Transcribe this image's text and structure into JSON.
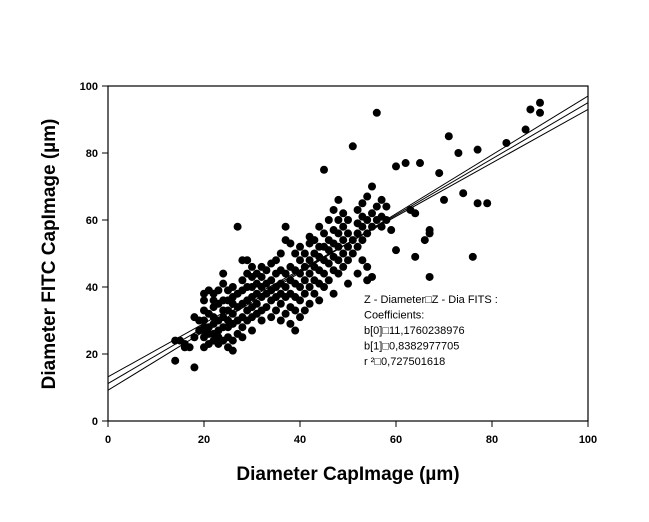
{
  "chart_data": {
    "type": "scatter",
    "xlabel": "Diameter CapImage (µm)",
    "ylabel": "Diameter FITC CapImage (µm)",
    "xlim": [
      0,
      100
    ],
    "ylim": [
      0,
      100
    ],
    "x_ticks": [
      0,
      20,
      40,
      60,
      80,
      100
    ],
    "y_ticks": [
      0,
      20,
      40,
      60,
      80,
      100
    ],
    "grid": false,
    "regression": {
      "intercept": 11.1760238976,
      "slope": 0.8382977705
    },
    "confidence_band_offsets": [
      -2,
      2
    ],
    "annotation": [
      "Z - Diameter□Z - Dia FITS :",
      "Coefficients:",
      "b[0]□11,1760238976",
      "b[1]□0,8382977705",
      "r ²□0,727501618"
    ],
    "points": [
      [
        14,
        18
      ],
      [
        14,
        24
      ],
      [
        15,
        24
      ],
      [
        16,
        22
      ],
      [
        16,
        23
      ],
      [
        17,
        22
      ],
      [
        18,
        16
      ],
      [
        18,
        25
      ],
      [
        19,
        27
      ],
      [
        19,
        30
      ],
      [
        18,
        31
      ],
      [
        20,
        22
      ],
      [
        20,
        25
      ],
      [
        20,
        27
      ],
      [
        20,
        28
      ],
      [
        20,
        30
      ],
      [
        20,
        33
      ],
      [
        20,
        36
      ],
      [
        20,
        38
      ],
      [
        21,
        23
      ],
      [
        21,
        26
      ],
      [
        21,
        28
      ],
      [
        21,
        32
      ],
      [
        21,
        39
      ],
      [
        22,
        24
      ],
      [
        22,
        26
      ],
      [
        22,
        29
      ],
      [
        22,
        31
      ],
      [
        22,
        34
      ],
      [
        22,
        36
      ],
      [
        22,
        38
      ],
      [
        23,
        23
      ],
      [
        23,
        25
      ],
      [
        23,
        27
      ],
      [
        23,
        30
      ],
      [
        23,
        35
      ],
      [
        23,
        39
      ],
      [
        24,
        24
      ],
      [
        24,
        28
      ],
      [
        24,
        31
      ],
      [
        24,
        33
      ],
      [
        24,
        36
      ],
      [
        24,
        41
      ],
      [
        24,
        44
      ],
      [
        25,
        22
      ],
      [
        25,
        25
      ],
      [
        25,
        28
      ],
      [
        25,
        30
      ],
      [
        25,
        33
      ],
      [
        25,
        36
      ],
      [
        25,
        39
      ],
      [
        26,
        21
      ],
      [
        26,
        24
      ],
      [
        26,
        29
      ],
      [
        26,
        32
      ],
      [
        26,
        35
      ],
      [
        26,
        37
      ],
      [
        26,
        40
      ],
      [
        27,
        26
      ],
      [
        27,
        30
      ],
      [
        27,
        34
      ],
      [
        27,
        38
      ],
      [
        27,
        58
      ],
      [
        28,
        25
      ],
      [
        28,
        28
      ],
      [
        28,
        31
      ],
      [
        28,
        35
      ],
      [
        28,
        39
      ],
      [
        28,
        42
      ],
      [
        28,
        48
      ],
      [
        29,
        30
      ],
      [
        29,
        33
      ],
      [
        29,
        36
      ],
      [
        29,
        40
      ],
      [
        29,
        44
      ],
      [
        29,
        48
      ],
      [
        30,
        27
      ],
      [
        30,
        31
      ],
      [
        30,
        34
      ],
      [
        30,
        37
      ],
      [
        30,
        40
      ],
      [
        30,
        43
      ],
      [
        30,
        46
      ],
      [
        31,
        32
      ],
      [
        31,
        35
      ],
      [
        31,
        38
      ],
      [
        31,
        41
      ],
      [
        31,
        44
      ],
      [
        32,
        30
      ],
      [
        32,
        33
      ],
      [
        32,
        37
      ],
      [
        32,
        40
      ],
      [
        32,
        43
      ],
      [
        32,
        46
      ],
      [
        33,
        34
      ],
      [
        33,
        38
      ],
      [
        33,
        41
      ],
      [
        33,
        45
      ],
      [
        34,
        31
      ],
      [
        34,
        36
      ],
      [
        34,
        39
      ],
      [
        34,
        42
      ],
      [
        34,
        47
      ],
      [
        35,
        33
      ],
      [
        35,
        37
      ],
      [
        35,
        40
      ],
      [
        35,
        44
      ],
      [
        35,
        48
      ],
      [
        36,
        30
      ],
      [
        36,
        35
      ],
      [
        36,
        38
      ],
      [
        36,
        41
      ],
      [
        36,
        45
      ],
      [
        36,
        50
      ],
      [
        37,
        32
      ],
      [
        37,
        37
      ],
      [
        37,
        40
      ],
      [
        37,
        44
      ],
      [
        37,
        54
      ],
      [
        37,
        58
      ],
      [
        38,
        29
      ],
      [
        38,
        34
      ],
      [
        38,
        38
      ],
      [
        38,
        42
      ],
      [
        38,
        46
      ],
      [
        38,
        53
      ],
      [
        39,
        27
      ],
      [
        39,
        33
      ],
      [
        39,
        37
      ],
      [
        39,
        41
      ],
      [
        39,
        45
      ],
      [
        39,
        50
      ],
      [
        40,
        31
      ],
      [
        40,
        36
      ],
      [
        40,
        40
      ],
      [
        40,
        44
      ],
      [
        40,
        48
      ],
      [
        40,
        52
      ],
      [
        41,
        33
      ],
      [
        41,
        38
      ],
      [
        41,
        42
      ],
      [
        41,
        46
      ],
      [
        41,
        50
      ],
      [
        42,
        35
      ],
      [
        42,
        40
      ],
      [
        42,
        44
      ],
      [
        42,
        48
      ],
      [
        42,
        53
      ],
      [
        42,
        55
      ],
      [
        43,
        38
      ],
      [
        43,
        42
      ],
      [
        43,
        46
      ],
      [
        43,
        50
      ],
      [
        43,
        54
      ],
      [
        44,
        36
      ],
      [
        44,
        41
      ],
      [
        44,
        45
      ],
      [
        44,
        49
      ],
      [
        44,
        52
      ],
      [
        44,
        58
      ],
      [
        45,
        40
      ],
      [
        45,
        44
      ],
      [
        45,
        48
      ],
      [
        45,
        52
      ],
      [
        45,
        56
      ],
      [
        45,
        75
      ],
      [
        46,
        42
      ],
      [
        46,
        47
      ],
      [
        46,
        51
      ],
      [
        46,
        54
      ],
      [
        46,
        60
      ],
      [
        47,
        38
      ],
      [
        47,
        45
      ],
      [
        47,
        49
      ],
      [
        47,
        53
      ],
      [
        47,
        57
      ],
      [
        47,
        63
      ],
      [
        48,
        44
      ],
      [
        48,
        48
      ],
      [
        48,
        52
      ],
      [
        48,
        56
      ],
      [
        48,
        60
      ],
      [
        48,
        66
      ],
      [
        49,
        46
      ],
      [
        49,
        50
      ],
      [
        49,
        54
      ],
      [
        49,
        58
      ],
      [
        49,
        62
      ],
      [
        50,
        41
      ],
      [
        50,
        48
      ],
      [
        50,
        52
      ],
      [
        50,
        56
      ],
      [
        50,
        60
      ],
      [
        51,
        50
      ],
      [
        51,
        54
      ],
      [
        51,
        82
      ],
      [
        52,
        44
      ],
      [
        52,
        52
      ],
      [
        52,
        56
      ],
      [
        52,
        59
      ],
      [
        52,
        63
      ],
      [
        53,
        48
      ],
      [
        53,
        54
      ],
      [
        53,
        58
      ],
      [
        53,
        61
      ],
      [
        53,
        65
      ],
      [
        54,
        42
      ],
      [
        54,
        46
      ],
      [
        54,
        56
      ],
      [
        54,
        60
      ],
      [
        54,
        67
      ],
      [
        55,
        43
      ],
      [
        55,
        58
      ],
      [
        55,
        62
      ],
      [
        55,
        70
      ],
      [
        56,
        60
      ],
      [
        56,
        64
      ],
      [
        56,
        92
      ],
      [
        57,
        58
      ],
      [
        57,
        61
      ],
      [
        57,
        66
      ],
      [
        58,
        60
      ],
      [
        58,
        64
      ],
      [
        59,
        57
      ],
      [
        60,
        51
      ],
      [
        60,
        76
      ],
      [
        62,
        77
      ],
      [
        63,
        63
      ],
      [
        64,
        49
      ],
      [
        64,
        62
      ],
      [
        65,
        77
      ],
      [
        66,
        54
      ],
      [
        67,
        43
      ],
      [
        67,
        56
      ],
      [
        67,
        57
      ],
      [
        69,
        74
      ],
      [
        70,
        66
      ],
      [
        71,
        85
      ],
      [
        73,
        80
      ],
      [
        74,
        68
      ],
      [
        76,
        49
      ],
      [
        77,
        65
      ],
      [
        77,
        81
      ],
      [
        79,
        65
      ],
      [
        83,
        83
      ],
      [
        87,
        87
      ],
      [
        88,
        93
      ],
      [
        90,
        92
      ],
      [
        90,
        95
      ]
    ]
  }
}
